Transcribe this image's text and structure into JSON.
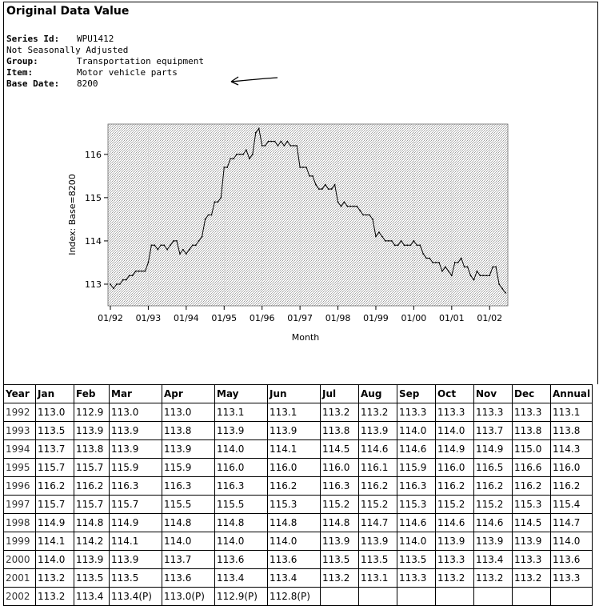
{
  "header": {
    "title": "Original Data Value"
  },
  "meta": {
    "series_id_label": "Series Id:",
    "series_id": "WPU1412",
    "adjustment": "Not Seasonally Adjusted",
    "group_label": "Group:",
    "group": "Transportation equipment",
    "item_label": "Item:",
    "item": "Motor vehicle parts",
    "base_date_label": "Base Date:",
    "base_date": "8200"
  },
  "chart_data": {
    "type": "line",
    "xlabel": "Month",
    "ylabel": "Index: Base=8200",
    "x_ticks": [
      "01/92",
      "01/93",
      "01/94",
      "01/95",
      "01/96",
      "01/97",
      "01/98",
      "01/99",
      "01/00",
      "01/01",
      "01/02"
    ],
    "y_ticks": [
      113,
      114,
      115,
      116
    ],
    "ylim": [
      112.5,
      116.7
    ],
    "grid": true,
    "start": "1992-01",
    "series": [
      {
        "values": [
          113.0,
          112.9,
          113.0,
          113.0,
          113.1,
          113.1,
          113.2,
          113.2,
          113.3,
          113.3,
          113.3,
          113.3,
          113.5,
          113.9,
          113.9,
          113.8,
          113.9,
          113.9,
          113.8,
          113.9,
          114.0,
          114.0,
          113.7,
          113.8,
          113.7,
          113.8,
          113.9,
          113.9,
          114.0,
          114.1,
          114.5,
          114.6,
          114.6,
          114.9,
          114.9,
          115.0,
          115.7,
          115.7,
          115.9,
          115.9,
          116.0,
          116.0,
          116.0,
          116.1,
          115.9,
          116.0,
          116.5,
          116.6,
          116.2,
          116.2,
          116.3,
          116.3,
          116.3,
          116.2,
          116.3,
          116.2,
          116.3,
          116.2,
          116.2,
          116.2,
          115.7,
          115.7,
          115.7,
          115.5,
          115.5,
          115.3,
          115.2,
          115.2,
          115.3,
          115.2,
          115.2,
          115.3,
          114.9,
          114.8,
          114.9,
          114.8,
          114.8,
          114.8,
          114.8,
          114.7,
          114.6,
          114.6,
          114.6,
          114.5,
          114.1,
          114.2,
          114.1,
          114.0,
          114.0,
          114.0,
          113.9,
          113.9,
          114.0,
          113.9,
          113.9,
          113.9,
          114.0,
          113.9,
          113.9,
          113.7,
          113.6,
          113.6,
          113.5,
          113.5,
          113.5,
          113.3,
          113.4,
          113.3,
          113.2,
          113.5,
          113.5,
          113.6,
          113.4,
          113.4,
          113.2,
          113.1,
          113.3,
          113.2,
          113.2,
          113.2,
          113.2,
          113.4,
          113.4,
          113.0,
          112.9,
          112.8
        ]
      }
    ]
  },
  "table": {
    "headers": [
      "Year",
      "Jan",
      "Feb",
      "Mar",
      "Apr",
      "May",
      "Jun",
      "Jul",
      "Aug",
      "Sep",
      "Oct",
      "Nov",
      "Dec",
      "Annual"
    ],
    "rows": [
      [
        "1992",
        "113.0",
        "112.9",
        "113.0",
        "113.0",
        "113.1",
        "113.1",
        "113.2",
        "113.2",
        "113.3",
        "113.3",
        "113.3",
        "113.3",
        "113.1"
      ],
      [
        "1993",
        "113.5",
        "113.9",
        "113.9",
        "113.8",
        "113.9",
        "113.9",
        "113.8",
        "113.9",
        "114.0",
        "114.0",
        "113.7",
        "113.8",
        "113.8"
      ],
      [
        "1994",
        "113.7",
        "113.8",
        "113.9",
        "113.9",
        "114.0",
        "114.1",
        "114.5",
        "114.6",
        "114.6",
        "114.9",
        "114.9",
        "115.0",
        "114.3"
      ],
      [
        "1995",
        "115.7",
        "115.7",
        "115.9",
        "115.9",
        "116.0",
        "116.0",
        "116.0",
        "116.1",
        "115.9",
        "116.0",
        "116.5",
        "116.6",
        "116.0"
      ],
      [
        "1996",
        "116.2",
        "116.2",
        "116.3",
        "116.3",
        "116.3",
        "116.2",
        "116.3",
        "116.2",
        "116.3",
        "116.2",
        "116.2",
        "116.2",
        "116.2"
      ],
      [
        "1997",
        "115.7",
        "115.7",
        "115.7",
        "115.5",
        "115.5",
        "115.3",
        "115.2",
        "115.2",
        "115.3",
        "115.2",
        "115.2",
        "115.3",
        "115.4"
      ],
      [
        "1998",
        "114.9",
        "114.8",
        "114.9",
        "114.8",
        "114.8",
        "114.8",
        "114.8",
        "114.7",
        "114.6",
        "114.6",
        "114.6",
        "114.5",
        "114.7"
      ],
      [
        "1999",
        "114.1",
        "114.2",
        "114.1",
        "114.0",
        "114.0",
        "114.0",
        "113.9",
        "113.9",
        "114.0",
        "113.9",
        "113.9",
        "113.9",
        "114.0"
      ],
      [
        "2000",
        "114.0",
        "113.9",
        "113.9",
        "113.7",
        "113.6",
        "113.6",
        "113.5",
        "113.5",
        "113.5",
        "113.3",
        "113.4",
        "113.3",
        "113.6"
      ],
      [
        "2001",
        "113.2",
        "113.5",
        "113.5",
        "113.6",
        "113.4",
        "113.4",
        "113.2",
        "113.1",
        "113.3",
        "113.2",
        "113.2",
        "113.2",
        "113.3"
      ],
      [
        "2002",
        "113.2",
        "113.4",
        "113.4(P)",
        "113.0(P)",
        "112.9(P)",
        "112.8(P)",
        "",
        "",
        "",
        "",
        "",
        "",
        ""
      ]
    ]
  }
}
